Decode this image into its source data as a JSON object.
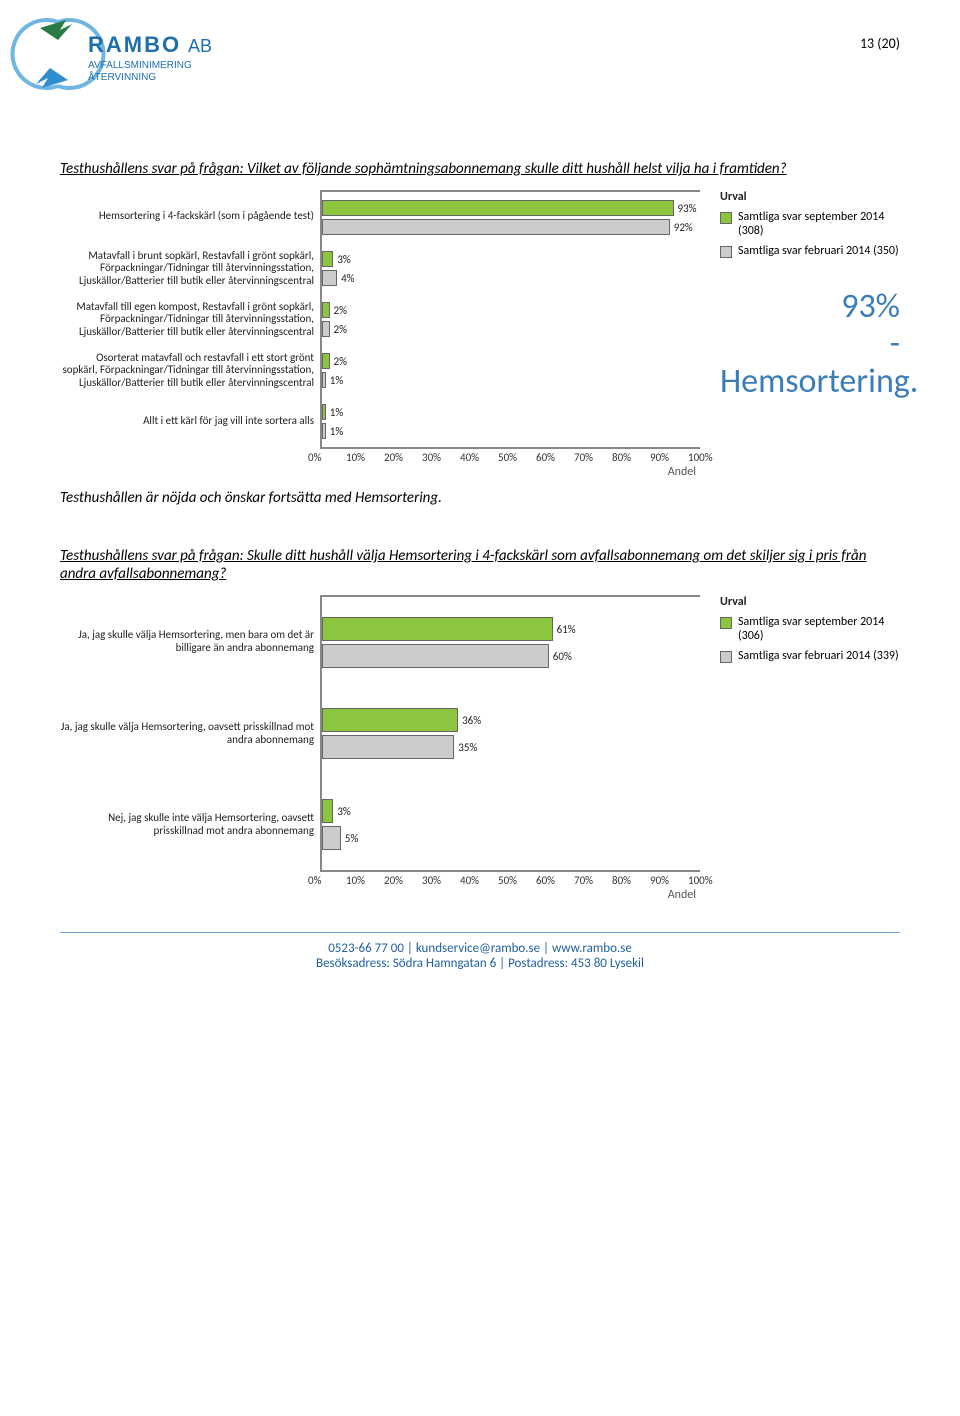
{
  "page_number": "13 (20)",
  "logo": {
    "brand_top": "RAMBO",
    "brand_suffix": "AB",
    "line1": "AVFALLSMINIMERING",
    "line2": "ÅTERVINNING",
    "arc_color": "#6fb6e0",
    "arrow1": "#2a7a45",
    "arrow2": "#2f8ed0",
    "text_color": "#1f6fab"
  },
  "question1": "Testhushållens svar på frågan: Vilket av följande sophämtningsabonnemang skulle ditt hushåll helst vilja ha i framtiden?",
  "chart1": {
    "type": "bar",
    "bar_colors": {
      "series1": "#8cc63f",
      "series2": "#cccccc"
    },
    "categories": [
      {
        "label": "Hemsortering i 4-fackskärl (som i pågående test)",
        "v1": 93,
        "v2": 92
      },
      {
        "label": "Matavfall i brunt sopkärl, Restavfall i grönt sopkärl, Förpackningar/Tidningar till återvinningsstation, Ljuskällor/Batterier till butik eller återvinningscentral",
        "v1": 3,
        "v2": 4
      },
      {
        "label": "Matavfall till egen kompost, Restavfall i grönt sopkärl, Förpackningar/Tidningar till återvinningsstation, Ljuskällor/Batterier till butik eller återvinningscentral",
        "v1": 2,
        "v2": 2
      },
      {
        "label": "Osorterat matavfall och restavfall i ett stort grönt sopkärl, Förpackningar/Tidningar till återvinningsstation, Ljuskällor/Batterier till butik eller återvinningscentral",
        "v1": 2,
        "v2": 1
      },
      {
        "label": "Allt i ett kärl för jag vill inte sortera alls",
        "v1": 1,
        "v2": 1
      }
    ],
    "x_ticks": [
      "0%",
      "10%",
      "20%",
      "30%",
      "40%",
      "50%",
      "60%",
      "70%",
      "80%",
      "90%",
      "100%"
    ],
    "x_label": "Andel",
    "legend_title": "Urval",
    "legend": [
      {
        "text": "Samtliga svar september 2014 (308)",
        "color": "#8cc63f"
      },
      {
        "text": "Samtliga svar februari 2014 (350)",
        "color": "#cccccc"
      }
    ],
    "callout": [
      "93%",
      "- Hemsortering."
    ]
  },
  "note1": "Testhushållen är nöjda och önskar fortsätta med Hemsortering.",
  "question2": "Testhushållens svar på frågan: Skulle ditt hushåll välja Hemsortering i 4-fackskärl som avfallsabonnemang om det skiljer sig i pris från andra avfallsabonnemang?",
  "chart2": {
    "type": "bar",
    "bar_colors": {
      "series1": "#8cc63f",
      "series2": "#cccccc"
    },
    "categories": [
      {
        "label": "Ja, jag skulle välja Hemsortering, men bara om det är billigare än andra abonnemang",
        "v1": 61,
        "v2": 60
      },
      {
        "label": "Ja, jag skulle välja Hemsortering, oavsett prisskillnad mot andra abonnemang",
        "v1": 36,
        "v2": 35
      },
      {
        "label": "Nej, jag skulle inte välja Hemsortering, oavsett prisskillnad mot andra abonnemang",
        "v1": 3,
        "v2": 5
      }
    ],
    "x_ticks": [
      "0%",
      "10%",
      "20%",
      "30%",
      "40%",
      "50%",
      "60%",
      "70%",
      "80%",
      "90%",
      "100%"
    ],
    "x_label": "Andel",
    "legend_title": "Urval",
    "legend": [
      {
        "text": "Samtliga svar september 2014 (306)",
        "color": "#8cc63f"
      },
      {
        "text": "Samtliga svar februari 2014 (339)",
        "color": "#cccccc"
      }
    ]
  },
  "footer": {
    "line1": "0523-66 77 00 | kundservice@rambo.se | www.rambo.se",
    "line2": "Besöksadress: Södra Hamngatan 6 | Postadress: 453 80 Lysekil"
  }
}
